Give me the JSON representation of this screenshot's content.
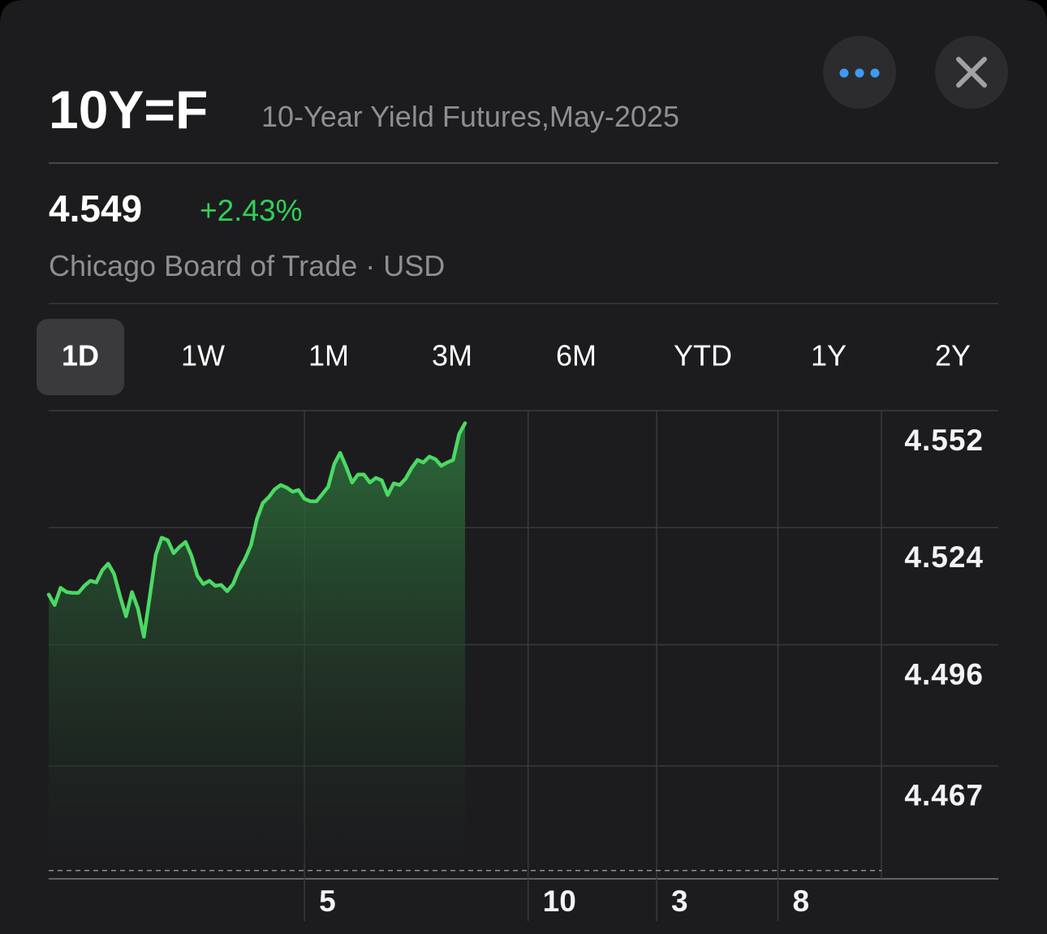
{
  "header": {
    "symbol": "10Y=F",
    "name": "10-Year Yield Futures,May-2025"
  },
  "quote": {
    "price": "4.549",
    "change": "+2.43%",
    "exchange": "Chicago Board of Trade · USD"
  },
  "tabs": {
    "items": [
      "1D",
      "1W",
      "1M",
      "3M",
      "6M",
      "YTD",
      "1Y",
      "2Y"
    ],
    "selected": 0
  },
  "chart_data": {
    "type": "line",
    "color": "#4cd964",
    "values": [
      4.508,
      4.5055,
      4.5096,
      4.5086,
      4.5084,
      4.5084,
      4.5101,
      4.5113,
      4.5109,
      4.5138,
      4.5154,
      4.5129,
      4.5076,
      4.5028,
      4.5086,
      4.5047,
      4.4979,
      4.5076,
      4.5175,
      4.5216,
      4.521,
      4.5179,
      4.5194,
      4.5206,
      4.5173,
      4.5125,
      4.5105,
      4.5113,
      4.5101,
      4.5103,
      4.5088,
      4.5105,
      4.514,
      4.5165,
      4.5198,
      4.526,
      4.5299,
      4.5313,
      4.5332,
      4.5342,
      4.5336,
      4.5326,
      4.533,
      4.5309,
      4.5303,
      4.5303,
      4.532,
      4.5338,
      4.5392,
      4.5419,
      4.5386,
      4.5348,
      4.5367,
      4.5367,
      4.5348,
      4.5359,
      4.5353,
      4.5318,
      4.5346,
      4.5342,
      4.5357,
      4.5382,
      4.5402,
      4.5396,
      4.541,
      4.5404,
      4.5388,
      4.5396,
      4.5402,
      4.5464,
      4.549
    ],
    "xlim": [
      0,
      140
    ],
    "xticks": [
      {
        "value": 43,
        "label": "5"
      },
      {
        "value": 80.6,
        "label": "10"
      },
      {
        "value": 102.2,
        "label": "3"
      },
      {
        "value": 122.6,
        "label": "8"
      }
    ],
    "ylim": [
      4.44,
      4.552
    ],
    "yticks": [
      4.552,
      4.524,
      4.496,
      4.467
    ],
    "reference_line": 4.442,
    "grid": true
  }
}
